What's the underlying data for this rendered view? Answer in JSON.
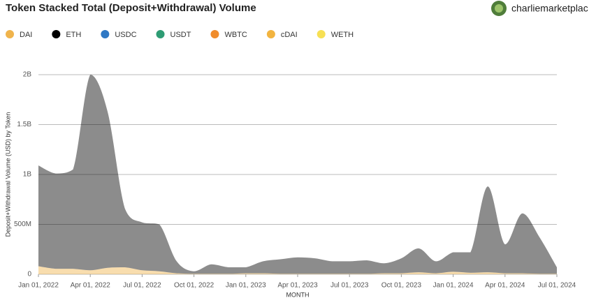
{
  "header": {
    "user": "charliemarketplac"
  },
  "chart_data": {
    "type": "area",
    "stacked": true,
    "title": "Token Stacked Total (Deposit+Withdrawal) Volume",
    "y_label": "Deposit+Withdrawal Volume (USD) by Token",
    "x_label": "MONTH",
    "x": [
      "Jan 01, 2022",
      "Feb 01, 2022",
      "Mar 01, 2022",
      "Apr 01, 2022",
      "May 01, 2022",
      "Jun 01, 2022",
      "Jul 01, 2022",
      "Aug 01, 2022",
      "Sep 01, 2022",
      "Oct 01, 2022",
      "Nov 01, 2022",
      "Dec 01, 2022",
      "Jan 01, 2023",
      "Feb 01, 2023",
      "Mar 01, 2023",
      "Apr 01, 2023",
      "May 01, 2023",
      "Jun 01, 2023",
      "Jul 01, 2023",
      "Aug 01, 2023",
      "Sep 01, 2023",
      "Oct 01, 2023",
      "Nov 01, 2023",
      "Dec 01, 2023",
      "Jan 01, 2024",
      "Feb 01, 2024",
      "Mar 01, 2024",
      "Apr 01, 2024",
      "May 01, 2024",
      "Jun 01, 2024",
      "Jul 01, 2024"
    ],
    "xticks": [
      "Jan 01, 2022",
      "Apr 01, 2022",
      "Jul 01, 2022",
      "Oct 01, 2022",
      "Jan 01, 2023",
      "Apr 01, 2023",
      "Jul 01, 2023",
      "Oct 01, 2023",
      "Jan 01, 2024",
      "Apr 01, 2024",
      "Jul 01, 2024"
    ],
    "ylim": [
      0,
      2000000000
    ],
    "yticks": [
      0,
      {
        "value": 500000000,
        "label": "500M"
      },
      {
        "value": 1000000000,
        "label": "1B"
      },
      {
        "value": 1500000000,
        "label": "1.5B"
      },
      {
        "value": 2000000000,
        "label": "2B"
      }
    ],
    "grid": true,
    "series": [
      {
        "name": "DAI",
        "color": "#f0b44c",
        "values": [
          80000000,
          55000000,
          55000000,
          40000000,
          65000000,
          70000000,
          40000000,
          30000000,
          10000000,
          5000000,
          5000000,
          5000000,
          10000000,
          10000000,
          5000000,
          5000000,
          5000000,
          5000000,
          5000000,
          5000000,
          10000000,
          10000000,
          20000000,
          10000000,
          25000000,
          15000000,
          20000000,
          10000000,
          10000000,
          5000000,
          5000000
        ]
      },
      {
        "name": "ETH",
        "color": "#000000",
        "values": [
          1010000000,
          955000000,
          995000000,
          1960000000,
          1565000000,
          590000000,
          480000000,
          470000000,
          120000000,
          25000000,
          95000000,
          65000000,
          60000000,
          120000000,
          145000000,
          165000000,
          155000000,
          125000000,
          125000000,
          135000000,
          100000000,
          150000000,
          240000000,
          120000000,
          195000000,
          205000000,
          860000000,
          290000000,
          600000000,
          365000000,
          65000000
        ]
      },
      {
        "name": "USDC",
        "color": "#2f78c4",
        "values": [
          0,
          0,
          0,
          0,
          0,
          0,
          0,
          0,
          0,
          0,
          0,
          0,
          0,
          0,
          0,
          0,
          0,
          0,
          0,
          0,
          0,
          0,
          0,
          0,
          0,
          0,
          0,
          0,
          0,
          0,
          0
        ]
      },
      {
        "name": "USDT",
        "color": "#2e9c74",
        "values": [
          0,
          0,
          0,
          0,
          0,
          0,
          0,
          0,
          0,
          0,
          0,
          0,
          0,
          0,
          0,
          0,
          0,
          0,
          0,
          0,
          0,
          0,
          0,
          0,
          0,
          0,
          0,
          0,
          0,
          0,
          0
        ]
      },
      {
        "name": "WBTC",
        "color": "#f08c2c",
        "values": [
          0,
          0,
          0,
          0,
          0,
          0,
          0,
          0,
          0,
          0,
          0,
          0,
          0,
          0,
          0,
          0,
          0,
          0,
          0,
          0,
          0,
          0,
          0,
          0,
          0,
          0,
          0,
          0,
          0,
          0,
          0
        ]
      },
      {
        "name": "cDAI",
        "color": "#f2b440",
        "values": [
          0,
          0,
          0,
          0,
          0,
          0,
          0,
          0,
          0,
          0,
          0,
          0,
          0,
          0,
          0,
          0,
          0,
          0,
          0,
          0,
          0,
          0,
          0,
          0,
          0,
          0,
          0,
          0,
          0,
          0,
          0
        ]
      },
      {
        "name": "WETH",
        "color": "#f7e054",
        "values": [
          0,
          0,
          0,
          0,
          0,
          0,
          0,
          0,
          0,
          0,
          0,
          0,
          0,
          0,
          0,
          0,
          0,
          0,
          0,
          0,
          0,
          0,
          0,
          0,
          0,
          0,
          0,
          0,
          0,
          0,
          0
        ]
      }
    ]
  }
}
